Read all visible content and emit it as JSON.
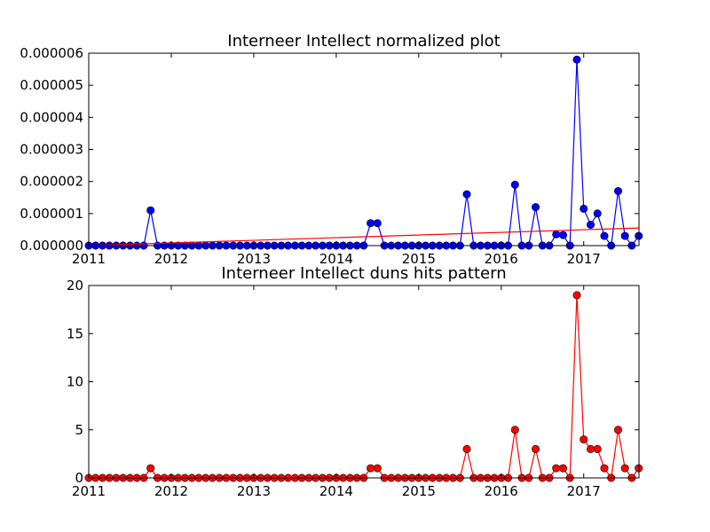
{
  "chart_data": [
    {
      "type": "line",
      "title": "Interneer Intellect normalized plot",
      "xlabel": "",
      "ylabel": "",
      "xlim": [
        2011.0,
        2017.67
      ],
      "ylim": [
        0,
        6e-06
      ],
      "x_ticks": [
        "2011",
        "2012",
        "2013",
        "2014",
        "2015",
        "2016",
        "2017"
      ],
      "y_ticks": [
        "0.000000",
        "0.000001",
        "0.000002",
        "0.000003",
        "0.000004",
        "0.000005",
        "0.000006"
      ],
      "grid": false,
      "x": [
        "2011-01",
        "2011-02",
        "2011-03",
        "2011-04",
        "2011-05",
        "2011-06",
        "2011-07",
        "2011-08",
        "2011-09",
        "2011-10",
        "2011-11",
        "2011-12",
        "2012-01",
        "2012-02",
        "2012-03",
        "2012-04",
        "2012-05",
        "2012-06",
        "2012-07",
        "2012-08",
        "2012-09",
        "2012-10",
        "2012-11",
        "2012-12",
        "2013-01",
        "2013-02",
        "2013-03",
        "2013-04",
        "2013-05",
        "2013-06",
        "2013-07",
        "2013-08",
        "2013-09",
        "2013-10",
        "2013-11",
        "2013-12",
        "2014-01",
        "2014-02",
        "2014-03",
        "2014-04",
        "2014-05",
        "2014-06",
        "2014-07",
        "2014-08",
        "2014-09",
        "2014-10",
        "2014-11",
        "2014-12",
        "2015-01",
        "2015-02",
        "2015-03",
        "2015-04",
        "2015-05",
        "2015-06",
        "2015-07",
        "2015-08",
        "2015-09",
        "2015-10",
        "2015-11",
        "2015-12",
        "2016-01",
        "2016-02",
        "2016-03",
        "2016-04",
        "2016-05",
        "2016-06",
        "2016-07",
        "2016-08",
        "2016-09",
        "2016-10",
        "2016-11",
        "2016-12",
        "2017-01",
        "2017-02",
        "2017-03",
        "2017-04",
        "2017-05",
        "2017-06",
        "2017-07",
        "2017-08",
        "2017-09"
      ],
      "series": [
        {
          "color": "#0000ff",
          "marker_color": "#0000ff",
          "values": [
            0,
            0,
            0,
            0,
            0,
            0,
            0,
            0,
            0,
            1.1e-06,
            0,
            0,
            0,
            0,
            0,
            0,
            0,
            0,
            0,
            0,
            0,
            0,
            0,
            0,
            0,
            0,
            0,
            0,
            0,
            0,
            0,
            0,
            0,
            0,
            0,
            0,
            0,
            0,
            0,
            0,
            0,
            7e-07,
            7e-07,
            0,
            0,
            0,
            0,
            0,
            0,
            0,
            0,
            0,
            0,
            0,
            0,
            1.6e-06,
            0,
            0,
            0,
            0,
            0,
            0,
            1.9e-06,
            0,
            0,
            1.2e-06,
            0,
            0,
            3.5e-07,
            3.3e-07,
            0,
            5.8e-06,
            1.15e-06,
            6.5e-07,
            1e-06,
            3e-07,
            0,
            1.7e-06,
            3e-07,
            0,
            3e-07
          ]
        }
      ],
      "trend_line": {
        "color": "#ff0000",
        "start": 0,
        "end": 5.5e-07
      }
    },
    {
      "type": "line",
      "title": "Interneer Intellect duns hits pattern",
      "xlabel": "",
      "ylabel": "",
      "xlim": [
        2011.0,
        2017.67
      ],
      "ylim": [
        0,
        20
      ],
      "x_ticks": [
        "2011",
        "2012",
        "2013",
        "2014",
        "2015",
        "2016",
        "2017"
      ],
      "y_ticks": [
        "0",
        "5",
        "10",
        "15",
        "20"
      ],
      "grid": false,
      "x": [
        "2011-01",
        "2011-02",
        "2011-03",
        "2011-04",
        "2011-05",
        "2011-06",
        "2011-07",
        "2011-08",
        "2011-09",
        "2011-10",
        "2011-11",
        "2011-12",
        "2012-01",
        "2012-02",
        "2012-03",
        "2012-04",
        "2012-05",
        "2012-06",
        "2012-07",
        "2012-08",
        "2012-09",
        "2012-10",
        "2012-11",
        "2012-12",
        "2013-01",
        "2013-02",
        "2013-03",
        "2013-04",
        "2013-05",
        "2013-06",
        "2013-07",
        "2013-08",
        "2013-09",
        "2013-10",
        "2013-11",
        "2013-12",
        "2014-01",
        "2014-02",
        "2014-03",
        "2014-04",
        "2014-05",
        "2014-06",
        "2014-07",
        "2014-08",
        "2014-09",
        "2014-10",
        "2014-11",
        "2014-12",
        "2015-01",
        "2015-02",
        "2015-03",
        "2015-04",
        "2015-05",
        "2015-06",
        "2015-07",
        "2015-08",
        "2015-09",
        "2015-10",
        "2015-11",
        "2015-12",
        "2016-01",
        "2016-02",
        "2016-03",
        "2016-04",
        "2016-05",
        "2016-06",
        "2016-07",
        "2016-08",
        "2016-09",
        "2016-10",
        "2016-11",
        "2016-12",
        "2017-01",
        "2017-02",
        "2017-03",
        "2017-04",
        "2017-05",
        "2017-06",
        "2017-07",
        "2017-08",
        "2017-09"
      ],
      "series": [
        {
          "color": "#ff0000",
          "marker_color": "#ff0000",
          "values": [
            0,
            0,
            0,
            0,
            0,
            0,
            0,
            0,
            0,
            1,
            0,
            0,
            0,
            0,
            0,
            0,
            0,
            0,
            0,
            0,
            0,
            0,
            0,
            0,
            0,
            0,
            0,
            0,
            0,
            0,
            0,
            0,
            0,
            0,
            0,
            0,
            0,
            0,
            0,
            0,
            0,
            1,
            1,
            0,
            0,
            0,
            0,
            0,
            0,
            0,
            0,
            0,
            0,
            0,
            0,
            3,
            0,
            0,
            0,
            0,
            0,
            0,
            5,
            0,
            0,
            3,
            0,
            0,
            1,
            1,
            0,
            19,
            4,
            3,
            3,
            1,
            0,
            5,
            1,
            0,
            1
          ]
        }
      ]
    }
  ]
}
